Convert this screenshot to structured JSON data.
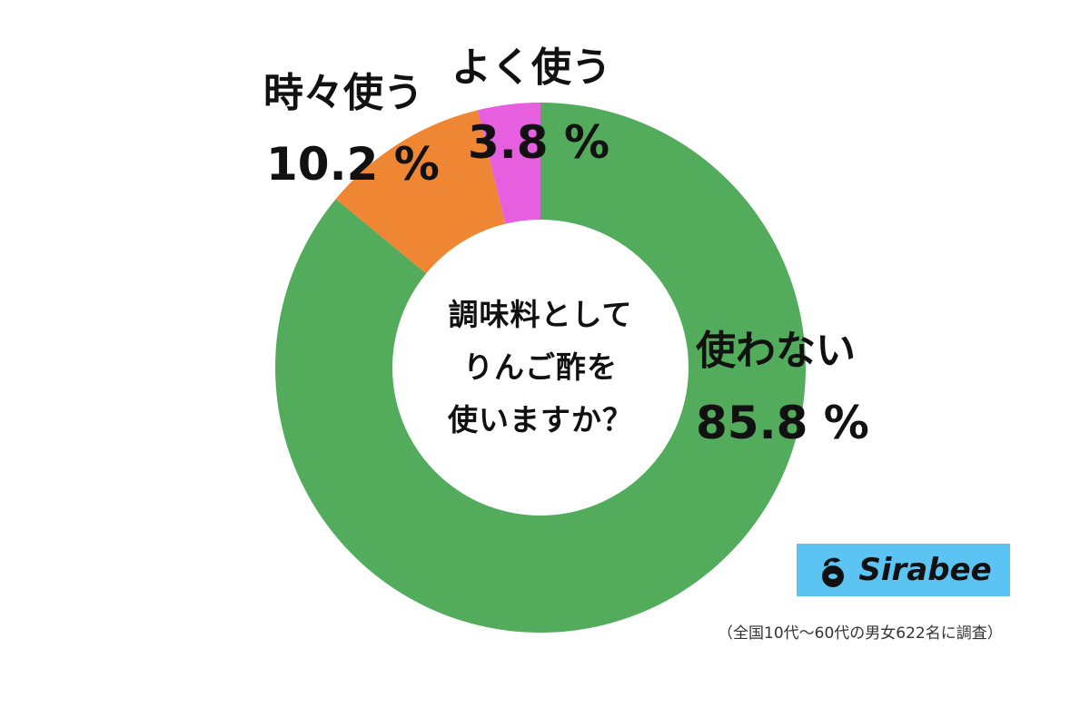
{
  "chart_data": {
    "type": "pie",
    "variant": "donut",
    "title": "調味料としてりんご酢を使いますか？",
    "categories": [
      "使わない",
      "時々使う",
      "よく使う"
    ],
    "values": [
      85.8,
      10.2,
      3.8
    ],
    "unit": "%",
    "colors": [
      "#52ac5c",
      "#ef8633",
      "#e65fdf"
    ],
    "start_angle": "12 o'clock, clockwise",
    "labels": [
      {
        "name": "使わない",
        "value": "85.8 %"
      },
      {
        "name": "時々使う",
        "value": "10.2 %"
      },
      {
        "name": "よく使う",
        "value": "3.8 %"
      }
    ],
    "legend": "none (direct labels)"
  },
  "center_question": {
    "line1": "調味料として",
    "line2": "りんご酢を",
    "line3": "使いますか？"
  },
  "labels": {
    "not_use_name": "使わない",
    "not_use_pct": "85.8 %",
    "sometimes_name": "時々使う",
    "sometimes_pct": "10.2 %",
    "often_name": "よく使う",
    "often_pct": "3.8 %"
  },
  "logo": {
    "text": "Sirabee",
    "bg": "#5bc4f2"
  },
  "footnote": "（全国10代〜60代の男女622名に調査）"
}
